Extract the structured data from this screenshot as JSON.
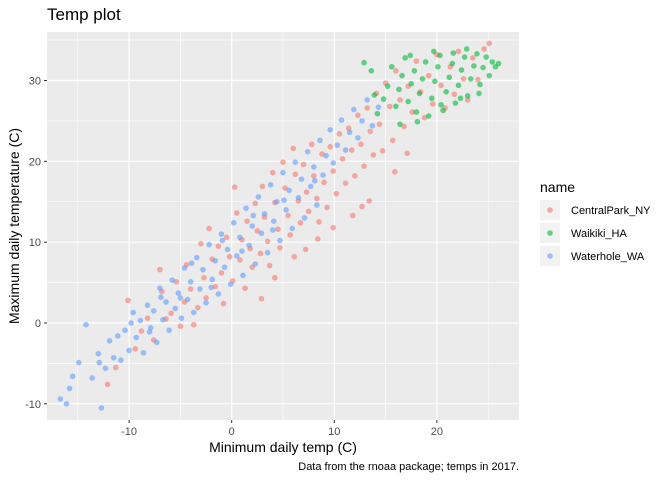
{
  "chart_data": {
    "type": "scatter",
    "title": "Temp plot",
    "xlabel": "Minimum daily temp (C)",
    "ylabel": "Maximum daily temperature (C)",
    "caption": "Data from the rnoaa package; temps in 2017.",
    "xlim": [
      -18,
      28
    ],
    "ylim": [
      -12,
      36
    ],
    "x_ticks": [
      -10,
      0,
      10,
      20
    ],
    "y_ticks": [
      -10,
      0,
      10,
      20,
      30
    ],
    "x_tick_labels": [
      "-10",
      "0",
      "10",
      "20"
    ],
    "y_tick_labels": [
      "-10",
      "0",
      "10",
      "20",
      "30"
    ],
    "grid": true,
    "legend": {
      "title": "name",
      "position": "right",
      "entries": [
        "CentralPark_NY",
        "Waikiki_HA",
        "Waterhole_WA"
      ]
    },
    "series": [
      {
        "name": "CentralPark_NY",
        "color": "#F8766D",
        "points": [
          [
            -12.1,
            -7.6
          ],
          [
            -11.3,
            -5.5
          ],
          [
            -10.1,
            2.8
          ],
          [
            -9.4,
            -3.2
          ],
          [
            -8.8,
            -1.0
          ],
          [
            -8.2,
            0.6
          ],
          [
            -7.6,
            -2.1
          ],
          [
            -7.0,
            6.6
          ],
          [
            -6.8,
            3.9
          ],
          [
            -6.4,
            0.5
          ],
          [
            -5.9,
            1.2
          ],
          [
            -5.4,
            5.1
          ],
          [
            -5.0,
            -0.4
          ],
          [
            -4.6,
            2.6
          ],
          [
            -4.4,
            7.2
          ],
          [
            -4.0,
            4.2
          ],
          [
            -3.7,
            -0.2
          ],
          [
            -3.3,
            1.9
          ],
          [
            -3.0,
            9.8
          ],
          [
            -2.7,
            5.6
          ],
          [
            -2.5,
            3.1
          ],
          [
            -2.2,
            11.7
          ],
          [
            -1.9,
            7.9
          ],
          [
            -1.6,
            4.5
          ],
          [
            -1.3,
            9.5
          ],
          [
            -1.0,
            6.2
          ],
          [
            -0.8,
            2.4
          ],
          [
            -0.5,
            10.6
          ],
          [
            -0.2,
            8.2
          ],
          [
            0.1,
            5.2
          ],
          [
            0.3,
            16.8
          ],
          [
            0.5,
            13.6
          ],
          [
            0.8,
            7.8
          ],
          [
            1.0,
            10.3
          ],
          [
            1.3,
            4.3
          ],
          [
            1.5,
            12.6
          ],
          [
            1.8,
            9.2
          ],
          [
            2.0,
            6.9
          ],
          [
            2.3,
            14.8
          ],
          [
            2.5,
            11.4
          ],
          [
            2.8,
            8.6
          ],
          [
            3.0,
            16.9
          ],
          [
            3.2,
            13.1
          ],
          [
            3.5,
            10.1
          ],
          [
            3.7,
            7.1
          ],
          [
            4.0,
            18.6
          ],
          [
            4.2,
            14.9
          ],
          [
            4.5,
            11.6
          ],
          [
            4.7,
            9.3
          ],
          [
            5.0,
            19.9
          ],
          [
            5.2,
            16.7
          ],
          [
            5.5,
            13.3
          ],
          [
            5.7,
            10.9
          ],
          [
            6.0,
            21.6
          ],
          [
            6.2,
            18.4
          ],
          [
            6.5,
            15.1
          ],
          [
            6.7,
            12.4
          ],
          [
            7.0,
            19.6
          ],
          [
            7.3,
            16.2
          ],
          [
            7.5,
            13.8
          ],
          [
            7.8,
            22.1
          ],
          [
            8.0,
            18.2
          ],
          [
            8.3,
            15.4
          ],
          [
            8.5,
            12.5
          ],
          [
            8.8,
            20.9
          ],
          [
            9.0,
            17.4
          ],
          [
            9.3,
            14.3
          ],
          [
            9.6,
            21.8
          ],
          [
            9.9,
            18.8
          ],
          [
            10.2,
            16.0
          ],
          [
            10.5,
            23.4
          ],
          [
            10.8,
            20.3
          ],
          [
            11.1,
            17.3
          ],
          [
            11.4,
            24.1
          ],
          [
            11.7,
            21.4
          ],
          [
            12.0,
            18.2
          ],
          [
            12.3,
            25.7
          ],
          [
            12.6,
            22.1
          ],
          [
            12.9,
            19.4
          ],
          [
            13.2,
            26.6
          ],
          [
            13.5,
            23.7
          ],
          [
            13.8,
            20.8
          ],
          [
            14.1,
            28.4
          ],
          [
            14.4,
            24.6
          ],
          [
            14.7,
            21.3
          ],
          [
            15.0,
            29.7
          ],
          [
            15.4,
            26.8
          ],
          [
            15.7,
            22.6
          ],
          [
            16.0,
            31.2
          ],
          [
            16.4,
            27.6
          ],
          [
            16.8,
            24.3
          ],
          [
            17.2,
            29.3
          ],
          [
            17.6,
            26.1
          ],
          [
            18.0,
            32.4
          ],
          [
            18.4,
            28.6
          ],
          [
            18.8,
            25.4
          ],
          [
            19.2,
            30.6
          ],
          [
            19.6,
            27.1
          ],
          [
            20.0,
            33.2
          ],
          [
            20.4,
            29.4
          ],
          [
            20.8,
            26.6
          ],
          [
            21.3,
            31.7
          ],
          [
            21.7,
            28.3
          ],
          [
            22.1,
            33.6
          ],
          [
            22.6,
            30.2
          ],
          [
            23.0,
            27.6
          ],
          [
            23.5,
            32.8
          ],
          [
            24.0,
            30.1
          ],
          [
            24.6,
            33.9
          ],
          [
            25.1,
            34.6
          ],
          [
            4.2,
            5.6
          ],
          [
            6.1,
            8.2
          ],
          [
            2.9,
            3.0
          ],
          [
            8.4,
            10.4
          ],
          [
            9.9,
            11.8
          ],
          [
            11.8,
            13.3
          ],
          [
            13.4,
            15.1
          ],
          [
            15.9,
            18.7
          ],
          [
            17.1,
            21.0
          ],
          [
            12.7,
            14.4
          ],
          [
            7.2,
            9.1
          ]
        ]
      },
      {
        "name": "Waikiki_HA",
        "color": "#00BA38",
        "points": [
          [
            12.9,
            32.2
          ],
          [
            13.6,
            31.2
          ],
          [
            14.8,
            27.7
          ],
          [
            15.2,
            29.3
          ],
          [
            15.6,
            31.7
          ],
          [
            16.0,
            26.8
          ],
          [
            16.3,
            28.9
          ],
          [
            16.6,
            30.6
          ],
          [
            16.9,
            32.8
          ],
          [
            17.2,
            27.4
          ],
          [
            17.5,
            29.6
          ],
          [
            17.8,
            31.2
          ],
          [
            18.0,
            26.1
          ],
          [
            18.3,
            28.4
          ],
          [
            18.6,
            30.2
          ],
          [
            18.9,
            32.3
          ],
          [
            19.2,
            25.6
          ],
          [
            19.5,
            27.8
          ],
          [
            19.8,
            29.9
          ],
          [
            20.1,
            31.7
          ],
          [
            20.3,
            33.1
          ],
          [
            20.6,
            26.3
          ],
          [
            20.9,
            28.6
          ],
          [
            21.2,
            30.4
          ],
          [
            21.5,
            32.1
          ],
          [
            21.8,
            27.2
          ],
          [
            22.1,
            29.4
          ],
          [
            22.4,
            31.3
          ],
          [
            22.7,
            32.9
          ],
          [
            23.0,
            28.1
          ],
          [
            23.3,
            30.2
          ],
          [
            23.6,
            31.8
          ],
          [
            23.9,
            33.3
          ],
          [
            24.2,
            29.5
          ],
          [
            24.5,
            31.6
          ],
          [
            24.8,
            32.9
          ],
          [
            25.1,
            30.6
          ],
          [
            25.4,
            32.3
          ],
          [
            25.7,
            31.7
          ],
          [
            26.0,
            32.1
          ],
          [
            14.2,
            25.9
          ],
          [
            16.4,
            24.6
          ],
          [
            19.7,
            33.6
          ],
          [
            21.6,
            33.4
          ],
          [
            22.9,
            33.9
          ],
          [
            17.4,
            33.1
          ],
          [
            13.9,
            28.2
          ],
          [
            18.1,
            24.9
          ],
          [
            20.4,
            27.0
          ],
          [
            22.3,
            27.8
          ],
          [
            24.1,
            28.4
          ]
        ]
      },
      {
        "name": "Waterhole_WA",
        "color": "#619CFF",
        "points": [
          [
            -16.7,
            -9.4
          ],
          [
            -16.1,
            -10.0
          ],
          [
            -15.5,
            -6.6
          ],
          [
            -14.9,
            -4.9
          ],
          [
            -14.2,
            -0.2
          ],
          [
            -13.6,
            -6.8
          ],
          [
            -13.0,
            -3.8
          ],
          [
            -12.7,
            -10.5
          ],
          [
            -12.3,
            -5.6
          ],
          [
            -11.9,
            -2.2
          ],
          [
            -11.5,
            -4.3
          ],
          [
            -11.1,
            -1.6
          ],
          [
            -10.8,
            -4.6
          ],
          [
            -10.4,
            -0.9
          ],
          [
            -10.0,
            -3.4
          ],
          [
            -9.6,
            1.3
          ],
          [
            -9.3,
            -1.8
          ],
          [
            -8.9,
            0.3
          ],
          [
            -8.6,
            -3.7
          ],
          [
            -8.2,
            2.2
          ],
          [
            -7.9,
            -0.6
          ],
          [
            -7.6,
            1.5
          ],
          [
            -7.3,
            -2.4
          ],
          [
            -7.0,
            4.3
          ],
          [
            -6.7,
            0.4
          ],
          [
            -6.4,
            2.6
          ],
          [
            -6.1,
            -0.9
          ],
          [
            -5.8,
            5.3
          ],
          [
            -5.5,
            1.8
          ],
          [
            -5.2,
            3.7
          ],
          [
            -4.9,
            0.6
          ],
          [
            -4.6,
            6.8
          ],
          [
            -4.3,
            2.9
          ],
          [
            -4.0,
            5.1
          ],
          [
            -3.7,
            1.3
          ],
          [
            -3.4,
            8.1
          ],
          [
            -3.1,
            4.2
          ],
          [
            -2.8,
            6.6
          ],
          [
            -2.5,
            2.5
          ],
          [
            -2.2,
            9.7
          ],
          [
            -1.9,
            5.4
          ],
          [
            -1.6,
            7.7
          ],
          [
            -1.3,
            3.6
          ],
          [
            -1.0,
            11.0
          ],
          [
            -0.7,
            6.9
          ],
          [
            -0.4,
            9.1
          ],
          [
            -0.1,
            4.8
          ],
          [
            0.2,
            12.4
          ],
          [
            0.5,
            8.3
          ],
          [
            0.8,
            10.6
          ],
          [
            1.1,
            5.9
          ],
          [
            1.4,
            14.2
          ],
          [
            1.7,
            9.6
          ],
          [
            2.0,
            12.0
          ],
          [
            2.3,
            7.3
          ],
          [
            2.6,
            15.6
          ],
          [
            2.9,
            11.1
          ],
          [
            3.2,
            13.5
          ],
          [
            3.5,
            8.7
          ],
          [
            3.8,
            17.1
          ],
          [
            4.1,
            12.6
          ],
          [
            4.4,
            15.0
          ],
          [
            4.7,
            10.2
          ],
          [
            5.0,
            18.6
          ],
          [
            5.3,
            14.0
          ],
          [
            5.6,
            16.4
          ],
          [
            5.9,
            11.7
          ],
          [
            6.2,
            19.9
          ],
          [
            6.5,
            15.5
          ],
          [
            6.8,
            17.8
          ],
          [
            7.1,
            13.0
          ],
          [
            7.4,
            21.2
          ],
          [
            7.7,
            16.9
          ],
          [
            8.0,
            19.3
          ],
          [
            8.3,
            14.6
          ],
          [
            8.6,
            22.6
          ],
          [
            8.9,
            18.3
          ],
          [
            9.2,
            20.7
          ],
          [
            9.6,
            23.9
          ],
          [
            9.9,
            19.8
          ],
          [
            10.3,
            22.0
          ],
          [
            10.7,
            25.1
          ],
          [
            11.1,
            21.4
          ],
          [
            11.5,
            23.6
          ],
          [
            11.9,
            26.4
          ],
          [
            12.3,
            22.9
          ],
          [
            12.7,
            25.0
          ],
          [
            13.2,
            27.6
          ],
          [
            13.7,
            24.4
          ],
          [
            14.3,
            26.7
          ],
          [
            -15.8,
            -8.1
          ],
          [
            -12.9,
            -4.9
          ],
          [
            -9.8,
            0.0
          ],
          [
            -6.9,
            3.2
          ],
          [
            -3.9,
            7.4
          ],
          [
            -0.9,
            10.2
          ],
          [
            2.1,
            13.3
          ],
          [
            5.1,
            15.2
          ],
          [
            8.1,
            17.6
          ],
          [
            -8.0,
            -1.1
          ],
          [
            -5.0,
            3.1
          ],
          [
            -2.0,
            4.4
          ],
          [
            1.0,
            8.9
          ],
          [
            4.0,
            11.5
          ]
        ]
      }
    ]
  }
}
